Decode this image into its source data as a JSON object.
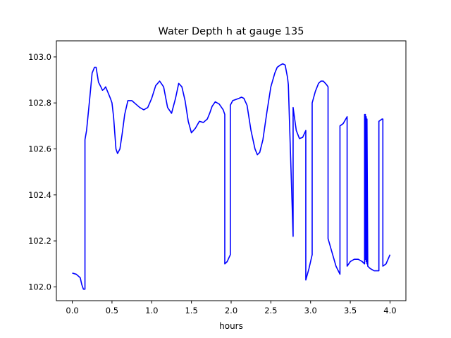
{
  "chart_data": {
    "type": "line",
    "title": "Water Depth h at gauge 135",
    "xlabel": "hours",
    "ylabel": "",
    "xlim": [
      -0.2,
      4.2
    ],
    "ylim": [
      101.94,
      103.07
    ],
    "x_ticks": [
      0.0,
      0.5,
      1.0,
      1.5,
      2.0,
      2.5,
      3.0,
      3.5,
      4.0
    ],
    "x_tick_labels": [
      "0.0",
      "0.5",
      "1.0",
      "1.5",
      "2.0",
      "2.5",
      "3.0",
      "3.5",
      "4.0"
    ],
    "y_ticks": [
      102.0,
      102.2,
      102.4,
      102.6,
      102.8,
      103.0
    ],
    "y_tick_labels": [
      "102.0",
      "102.2",
      "102.4",
      "102.6",
      "102.8",
      "103.0"
    ],
    "grid": false,
    "color": "#0000ff",
    "series": [
      {
        "x": [
          0.0,
          0.05,
          0.1,
          0.12,
          0.14,
          0.16,
          0.16,
          0.18,
          0.2,
          0.22,
          0.25,
          0.28,
          0.3,
          0.33,
          0.36,
          0.38,
          0.4,
          0.42,
          0.45,
          0.48,
          0.5,
          0.52,
          0.55,
          0.57,
          0.6,
          0.63,
          0.66,
          0.7,
          0.75,
          0.8,
          0.85,
          0.9,
          0.95,
          1.0,
          1.05,
          1.1,
          1.15,
          1.2,
          1.25,
          1.3,
          1.34,
          1.38,
          1.42,
          1.46,
          1.5,
          1.55,
          1.6,
          1.65,
          1.7,
          1.73,
          1.76,
          1.8,
          1.85,
          1.9,
          1.92,
          1.92,
          1.95,
          1.99,
          1.99,
          2.02,
          2.06,
          2.1,
          2.13,
          2.16,
          2.2,
          2.25,
          2.3,
          2.33,
          2.36,
          2.4,
          2.45,
          2.5,
          2.55,
          2.58,
          2.62,
          2.65,
          2.68,
          2.71,
          2.72,
          2.78,
          2.78,
          2.82,
          2.86,
          2.9,
          2.94,
          2.94,
          2.98,
          3.02,
          3.02,
          3.06,
          3.1,
          3.13,
          3.16,
          3.2,
          3.22,
          3.22,
          3.27,
          3.32,
          3.37,
          3.37,
          3.41,
          3.46,
          3.46,
          3.5,
          3.55,
          3.6,
          3.65,
          3.68,
          3.68,
          3.69,
          3.69,
          3.7,
          3.7,
          3.71,
          3.71,
          3.72,
          3.75,
          3.8,
          3.85,
          3.86,
          3.86,
          3.9,
          3.91,
          3.91,
          3.95,
          4.0
        ],
        "y": [
          102.06,
          102.055,
          102.04,
          102.01,
          101.99,
          101.99,
          102.64,
          102.68,
          102.75,
          102.82,
          102.93,
          102.955,
          102.955,
          102.89,
          102.87,
          102.855,
          102.86,
          102.87,
          102.845,
          102.82,
          102.8,
          102.74,
          102.6,
          102.58,
          102.6,
          102.67,
          102.75,
          102.81,
          102.81,
          102.795,
          102.78,
          102.77,
          102.78,
          102.82,
          102.875,
          102.895,
          102.87,
          102.78,
          102.755,
          102.82,
          102.885,
          102.87,
          102.81,
          102.72,
          102.67,
          102.69,
          102.72,
          102.715,
          102.73,
          102.755,
          102.785,
          102.805,
          102.795,
          102.77,
          102.75,
          102.1,
          102.11,
          102.14,
          102.79,
          102.81,
          102.815,
          102.82,
          102.825,
          102.82,
          102.79,
          102.68,
          102.6,
          102.575,
          102.585,
          102.64,
          102.76,
          102.87,
          102.93,
          102.955,
          102.965,
          102.97,
          102.965,
          102.91,
          102.88,
          102.22,
          102.78,
          102.68,
          102.645,
          102.65,
          102.68,
          102.03,
          102.08,
          102.14,
          102.8,
          102.85,
          102.885,
          102.895,
          102.895,
          102.88,
          102.87,
          102.21,
          102.15,
          102.09,
          102.055,
          102.7,
          102.71,
          102.74,
          102.09,
          102.11,
          102.12,
          102.12,
          102.11,
          102.1,
          102.75,
          102.12,
          102.75,
          102.11,
          102.74,
          102.1,
          102.73,
          102.09,
          102.08,
          102.07,
          102.07,
          102.07,
          102.72,
          102.73,
          102.73,
          102.09,
          102.1,
          102.14
        ]
      }
    ]
  }
}
